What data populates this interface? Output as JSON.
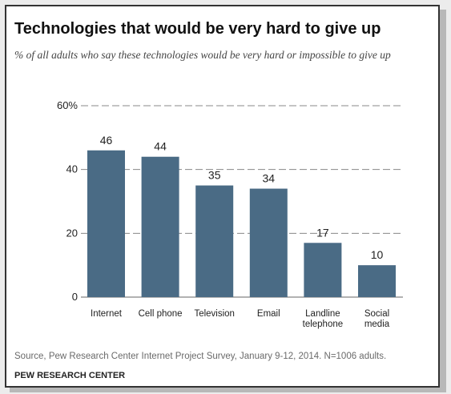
{
  "title": "Technologies that would be very hard to give up",
  "subtitle": "% of all adults who say these technologies would be very hard or impossible to give up",
  "source": "Source, Pew Research Center Internet Project Survey, January 9-12, 2014. N=1006 adults.",
  "credit": "PEW RESEARCH CENTER",
  "colors": {
    "bar": "#4a6b85",
    "grid": "#888888",
    "text": "#222222"
  },
  "chart_data": {
    "type": "bar",
    "title": "Technologies that would be very hard to give up",
    "subtitle": "% of all adults who say these technologies would be very hard or impossible to give up",
    "xlabel": "",
    "ylabel": "",
    "categories": [
      [
        "Internet"
      ],
      [
        "Cell phone"
      ],
      [
        "Television"
      ],
      [
        "Email"
      ],
      [
        "Landline",
        "telephone"
      ],
      [
        "Social",
        "media"
      ]
    ],
    "values": [
      46,
      44,
      35,
      34,
      17,
      10
    ],
    "ylim": [
      0,
      60
    ],
    "yticks": [
      "0",
      "20",
      "40",
      "60%"
    ],
    "ytick_values": [
      0,
      20,
      40,
      60
    ],
    "grid": "dashed horizontal",
    "legend": "none"
  }
}
